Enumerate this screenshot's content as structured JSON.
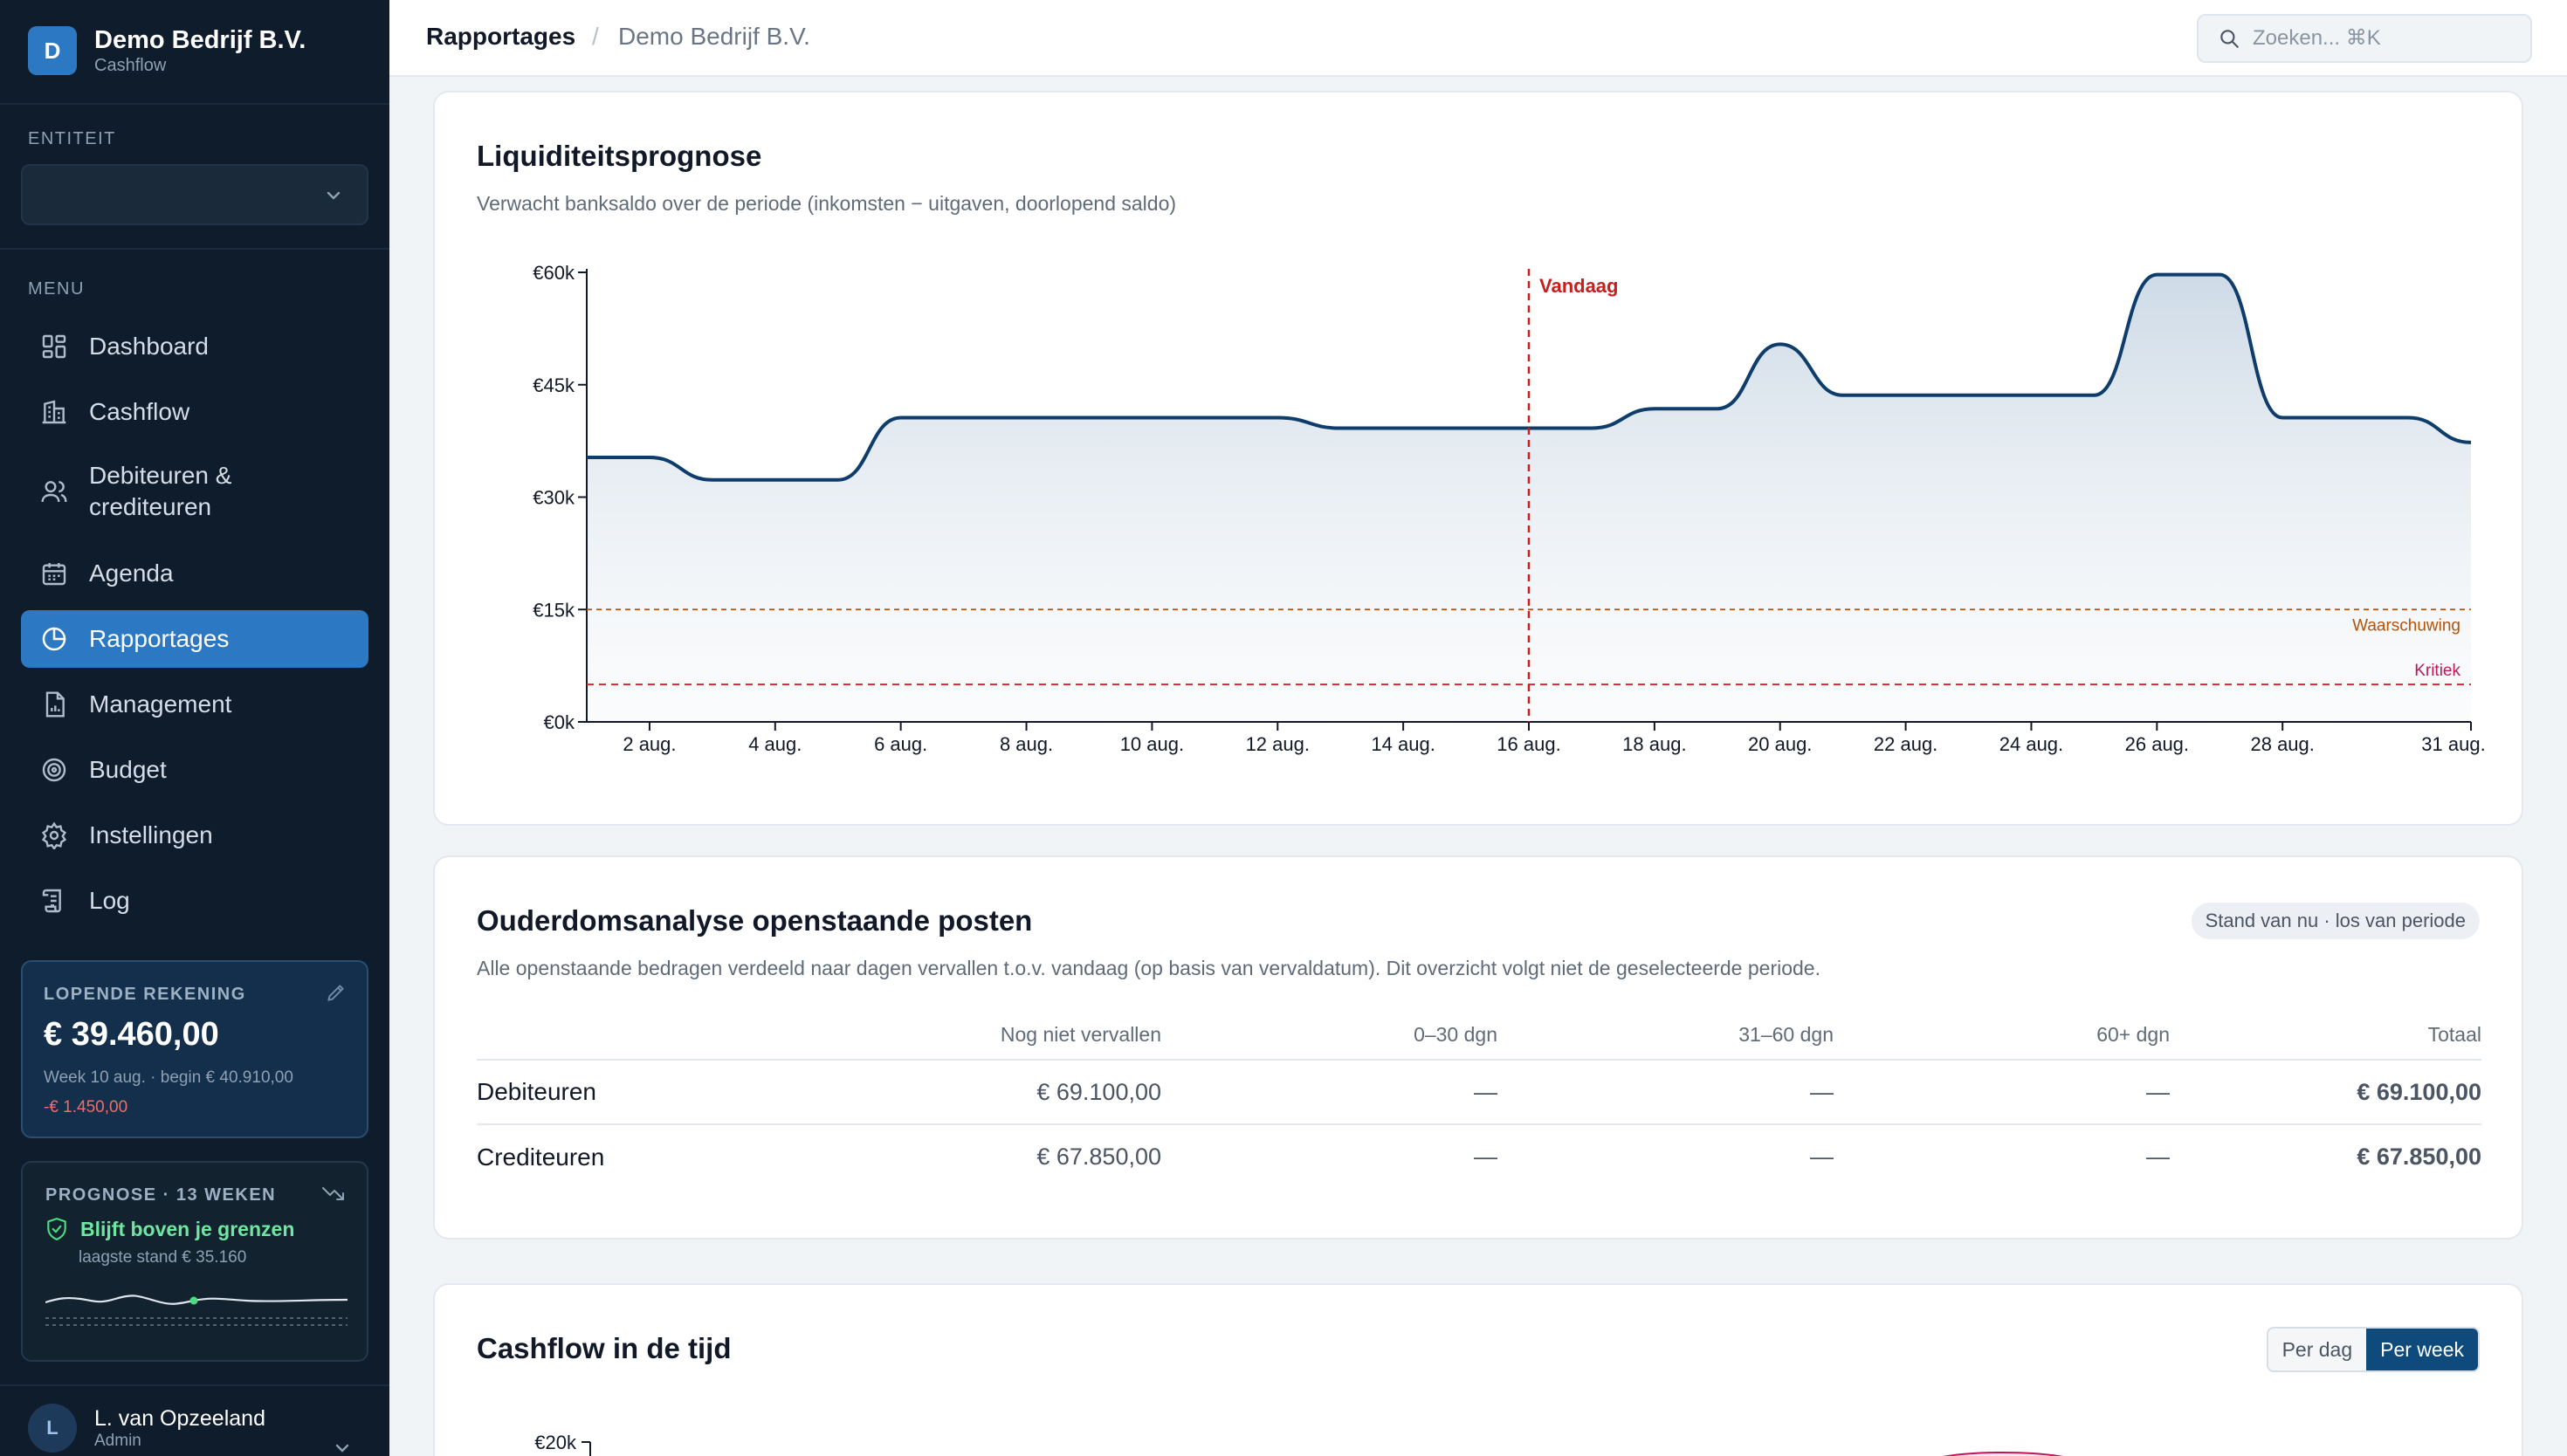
{
  "sidebar": {
    "brand_initial": "D",
    "brand_name": "Demo Bedrijf B.V.",
    "brand_sub": "Cashflow",
    "entity_label": "ENTITEIT",
    "menu_label": "MENU",
    "items": [
      {
        "label": "Dashboard",
        "icon": "grid-icon"
      },
      {
        "label": "Cashflow",
        "icon": "building-icon"
      },
      {
        "label": "Debiteuren & crediteuren",
        "icon": "users-icon"
      },
      {
        "label": "Agenda",
        "icon": "calendar-icon"
      },
      {
        "label": "Rapportages",
        "icon": "pie-chart-icon",
        "active": true
      },
      {
        "label": "Management",
        "icon": "document-chart-icon"
      },
      {
        "label": "Budget",
        "icon": "target-icon"
      },
      {
        "label": "Instellingen",
        "icon": "gear-icon"
      },
      {
        "label": "Log",
        "icon": "scroll-icon"
      }
    ],
    "account": {
      "label": "LOPENDE REKENING",
      "amount": "€ 39.460,00",
      "sub": "Week 10 aug. · begin € 40.910,00",
      "delta": "-€ 1.450,00"
    },
    "forecast": {
      "label": "PROGNOSE · 13 WEKEN",
      "status": "Blijft boven je grenzen",
      "lowest": "laagste stand € 35.160"
    },
    "user": {
      "initial": "L",
      "name": "L. van Opzeeland",
      "role": "Admin"
    }
  },
  "topbar": {
    "crumb_section": "Rapportages",
    "crumb_separator": "/",
    "crumb_entity": "Demo Bedrijf B.V.",
    "search_placeholder": "Zoeken... ⌘K"
  },
  "liquidity": {
    "title": "Liquiditeitsprognose",
    "subtitle": "Verwacht banksaldo over de periode (inkomsten − uitgaven, doorlopend saldo)",
    "today_label": "Vandaag",
    "warning_label": "Waarschuwing",
    "critical_label": "Kritiek"
  },
  "aging": {
    "title": "Ouderdomsanalyse openstaande posten",
    "badge": "Stand van nu · los van periode",
    "subtitle": "Alle openstaande bedragen verdeeld naar dagen vervallen t.o.v. vandaag (op basis van vervaldatum). Dit overzicht volgt niet de geselecteerde periode.",
    "columns": [
      "",
      "Nog niet vervallen",
      "0–30 dgn",
      "31–60 dgn",
      "60+ dgn",
      "Totaal"
    ],
    "rows": [
      {
        "label": "Debiteuren",
        "not_due": "€ 69.100,00",
        "d0_30": "—",
        "d31_60": "—",
        "d60": "—",
        "total": "€ 69.100,00"
      },
      {
        "label": "Crediteuren",
        "not_due": "€ 67.850,00",
        "d0_30": "—",
        "d31_60": "—",
        "d60": "—",
        "total": "€ 67.850,00"
      }
    ]
  },
  "cashflow_time": {
    "title": "Cashflow in de tijd",
    "toggle_day": "Per dag",
    "toggle_week": "Per week",
    "first_tick": "€20k"
  },
  "colors": {
    "sidebar_bg": "#0f1c2b",
    "accent": "#2c78c2",
    "line": "#0e3d6b",
    "today": "#c81e1e",
    "warning": "#b45309",
    "critical": "#dc2626",
    "positive": "#16a34a"
  },
  "chart_data": {
    "type": "area",
    "title": "Liquiditeitsprognose",
    "xlabel": "",
    "ylabel": "",
    "x_ticks": [
      "2 aug.",
      "4 aug.",
      "6 aug.",
      "8 aug.",
      "10 aug.",
      "12 aug.",
      "14 aug.",
      "16 aug.",
      "18 aug.",
      "20 aug.",
      "22 aug.",
      "24 aug.",
      "26 aug.",
      "28 aug.",
      "31 aug."
    ],
    "y_ticks": [
      "€0k",
      "€15k",
      "€30k",
      "€45k",
      "€60k"
    ],
    "ylim": [
      0,
      60000
    ],
    "x": [
      1,
      2,
      3,
      4,
      5,
      6,
      7,
      8,
      9,
      10,
      11,
      12,
      13,
      14,
      15,
      16,
      17,
      18,
      19,
      20,
      21,
      22,
      23,
      24,
      25,
      26,
      27,
      28,
      29,
      30,
      31
    ],
    "values": [
      35300,
      35300,
      32300,
      32300,
      32300,
      40600,
      40600,
      40600,
      40600,
      40600,
      40600,
      40600,
      39200,
      39200,
      39200,
      39200,
      39200,
      41800,
      41800,
      50400,
      43600,
      43600,
      43600,
      43600,
      43600,
      59700,
      59700,
      40600,
      40600,
      40600,
      37300
    ],
    "today_x": 16,
    "warning_threshold": 15000,
    "critical_threshold": 5000,
    "grid": false
  }
}
